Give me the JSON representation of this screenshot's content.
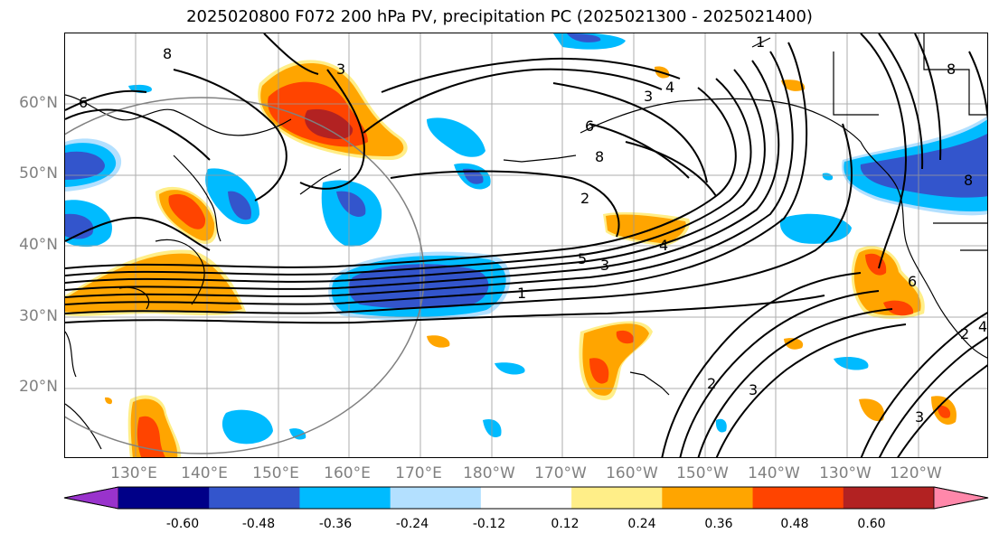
{
  "title": "2025020800 F072 200 hPa PV, precipitation PC (2025021300 - 2025021400)",
  "lat_labels": [
    "60°N",
    "50°N",
    "40°N",
    "30°N",
    "20°N"
  ],
  "lon_labels": [
    "130°E",
    "140°E",
    "150°E",
    "160°E",
    "170°E",
    "180°W",
    "170°W",
    "160°W",
    "150°W",
    "140°W",
    "130°W",
    "120°W"
  ],
  "contour_labels": [
    "8",
    "6",
    "3",
    "4",
    "3",
    "6",
    "8",
    "2",
    "8",
    "5",
    "3",
    "4",
    "1",
    "2",
    "3",
    "4",
    "6",
    "8",
    "1",
    "2",
    "3"
  ],
  "colorbar": {
    "colors": [
      "#9933cc",
      "#000088",
      "#3355cc",
      "#00bbff",
      "#b3e0ff",
      "#ffffff",
      "#ffee88",
      "#ffa500",
      "#ff4400",
      "#b22222",
      "#ff88aa"
    ],
    "tick_labels": [
      "-0.60",
      "-0.48",
      "-0.36",
      "-0.24",
      "-0.12",
      "0.12",
      "0.24",
      "0.36",
      "0.48",
      "0.60"
    ]
  },
  "colors": {
    "contour": "#000000",
    "grid": "#999999",
    "circle": "#808080",
    "neg_light": "#00bbff",
    "neg_dark": "#3355cc",
    "pos_light": "#ffa500",
    "pos_mid": "#ff4400",
    "pos_dark": "#b22222",
    "pos_pale": "#ffee88"
  }
}
